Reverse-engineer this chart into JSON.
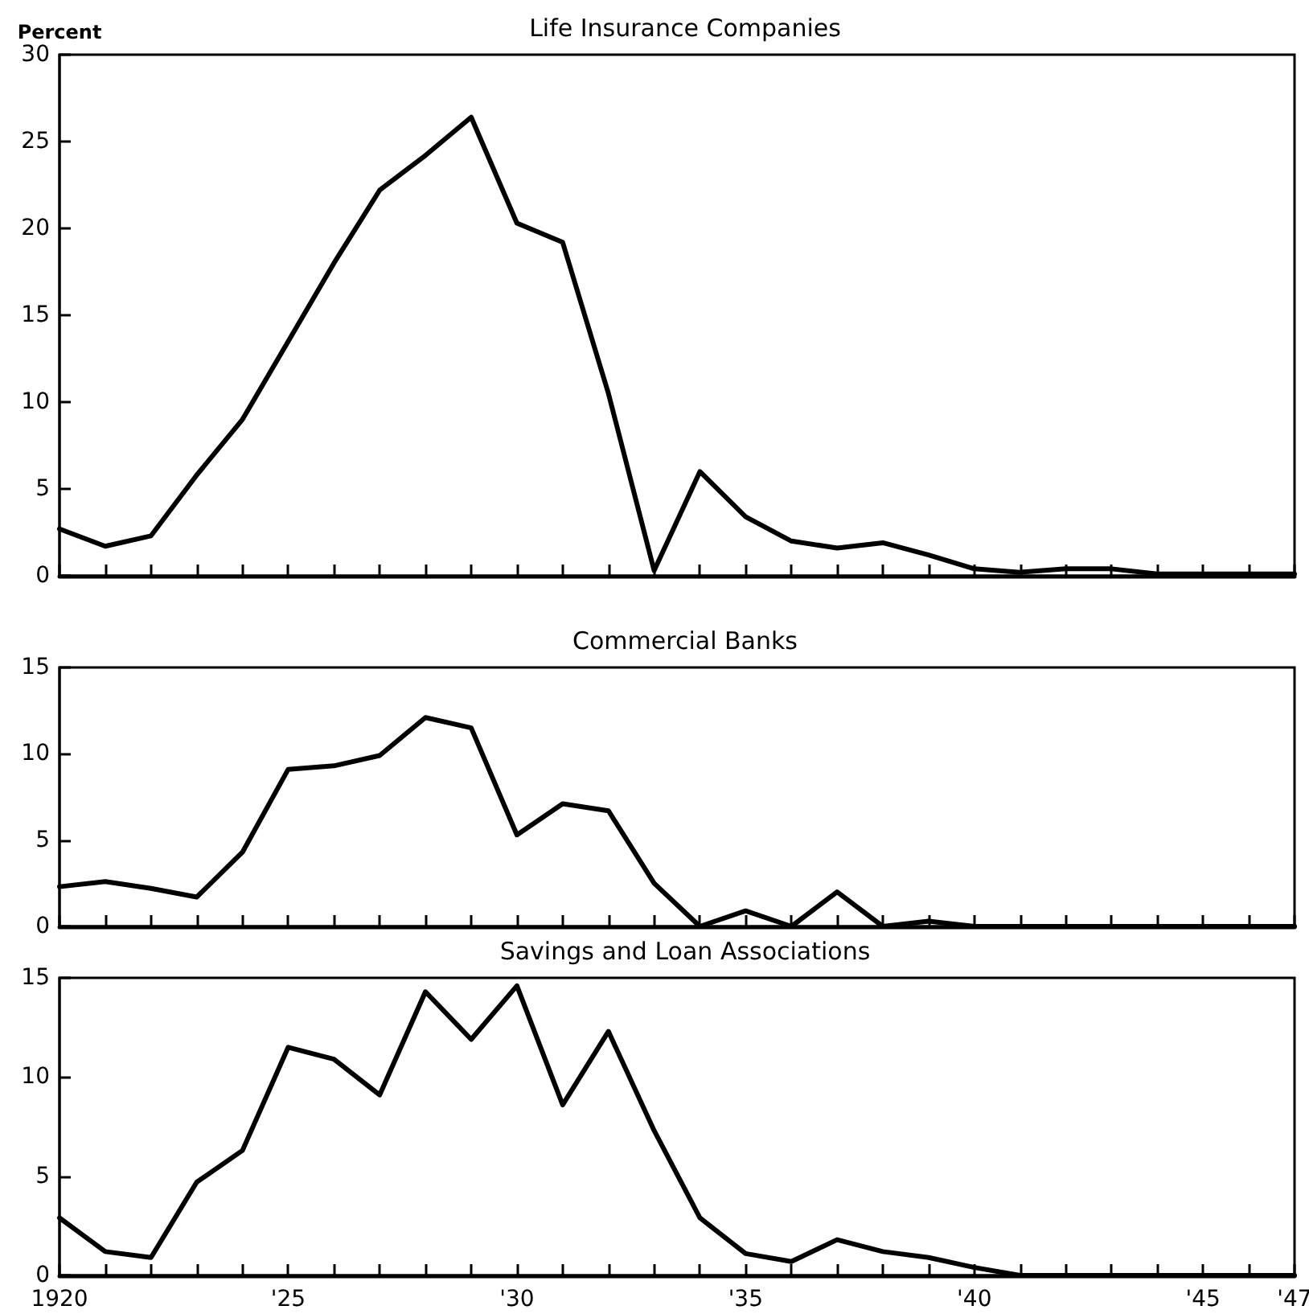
{
  "chart_data": [
    {
      "type": "line",
      "title": "Life Insurance Companies",
      "ylabel": "Percent",
      "tick_labels": "y",
      "x": [
        1920,
        1921,
        1922,
        1923,
        1924,
        1925,
        1926,
        1927,
        1928,
        1929,
        1930,
        1931,
        1932,
        1933,
        1934,
        1935,
        1936,
        1937,
        1938,
        1939,
        1940,
        1941,
        1942,
        1943,
        1944,
        1945,
        1946,
        1947
      ],
      "series": [
        {
          "color": "#000000",
          "values": [
            2.7,
            1.7,
            2.3,
            5.8,
            9.0,
            13.5,
            18.0,
            22.2,
            24.2,
            26.4,
            20.3,
            19.2,
            10.5,
            0.3,
            6.0,
            3.4,
            2.0,
            1.6,
            1.9,
            1.2,
            0.4,
            0.2,
            0.4,
            0.4,
            0.1,
            0.1,
            0.1,
            0.1
          ]
        }
      ],
      "xlim": [
        1920,
        1947
      ],
      "xticks": [
        {
          "value": 1920,
          "label": null
        },
        {
          "value": 1921,
          "label": null
        },
        {
          "value": 1922,
          "label": null
        },
        {
          "value": 1923,
          "label": null
        },
        {
          "value": 1924,
          "label": null
        },
        {
          "value": 1925,
          "label": null
        },
        {
          "value": 1926,
          "label": null
        },
        {
          "value": 1927,
          "label": null
        },
        {
          "value": 1928,
          "label": null
        },
        {
          "value": 1929,
          "label": null
        },
        {
          "value": 1930,
          "label": null
        },
        {
          "value": 1931,
          "label": null
        },
        {
          "value": 1932,
          "label": null
        },
        {
          "value": 1933,
          "label": null
        },
        {
          "value": 1934,
          "label": null
        },
        {
          "value": 1935,
          "label": null
        },
        {
          "value": 1936,
          "label": null
        },
        {
          "value": 1937,
          "label": null
        },
        {
          "value": 1938,
          "label": null
        },
        {
          "value": 1939,
          "label": null
        },
        {
          "value": 1940,
          "label": null
        },
        {
          "value": 1941,
          "label": null
        },
        {
          "value": 1942,
          "label": null
        },
        {
          "value": 1943,
          "label": null
        },
        {
          "value": 1944,
          "label": null
        },
        {
          "value": 1945,
          "label": null
        },
        {
          "value": 1946,
          "label": null
        },
        {
          "value": 1947,
          "label": null
        }
      ],
      "ylim": [
        0,
        30
      ],
      "yticks": [
        0,
        5,
        10,
        15,
        20,
        25,
        30
      ]
    },
    {
      "type": "line",
      "title": "Commercial Banks",
      "tick_labels": "y",
      "x": [
        1920,
        1921,
        1922,
        1923,
        1924,
        1925,
        1926,
        1927,
        1928,
        1929,
        1930,
        1931,
        1932,
        1933,
        1934,
        1935,
        1936,
        1937,
        1938,
        1939,
        1940,
        1941,
        1942,
        1943,
        1944,
        1945,
        1946,
        1947
      ],
      "series": [
        {
          "color": "#000000",
          "values": [
            2.3,
            2.6,
            2.2,
            1.7,
            4.3,
            9.1,
            9.3,
            9.9,
            12.1,
            11.5,
            5.3,
            7.1,
            6.7,
            2.5,
            0,
            0.9,
            0,
            2.0,
            0,
            0.3,
            0,
            0,
            0,
            0,
            0,
            0,
            0,
            0
          ]
        }
      ],
      "xlim": [
        1920,
        1947
      ],
      "xticks": [
        {
          "value": 1920,
          "label": null
        },
        {
          "value": 1921,
          "label": null
        },
        {
          "value": 1922,
          "label": null
        },
        {
          "value": 1923,
          "label": null
        },
        {
          "value": 1924,
          "label": null
        },
        {
          "value": 1925,
          "label": null
        },
        {
          "value": 1926,
          "label": null
        },
        {
          "value": 1927,
          "label": null
        },
        {
          "value": 1928,
          "label": null
        },
        {
          "value": 1929,
          "label": null
        },
        {
          "value": 1930,
          "label": null
        },
        {
          "value": 1931,
          "label": null
        },
        {
          "value": 1932,
          "label": null
        },
        {
          "value": 1933,
          "label": null
        },
        {
          "value": 1934,
          "label": null
        },
        {
          "value": 1935,
          "label": null
        },
        {
          "value": 1936,
          "label": null
        },
        {
          "value": 1937,
          "label": null
        },
        {
          "value": 1938,
          "label": null
        },
        {
          "value": 1939,
          "label": null
        },
        {
          "value": 1940,
          "label": null
        },
        {
          "value": 1941,
          "label": null
        },
        {
          "value": 1942,
          "label": null
        },
        {
          "value": 1943,
          "label": null
        },
        {
          "value": 1944,
          "label": null
        },
        {
          "value": 1945,
          "label": null
        },
        {
          "value": 1946,
          "label": null
        },
        {
          "value": 1947,
          "label": null
        }
      ],
      "ylim": [
        0,
        15
      ],
      "yticks": [
        0,
        5,
        10,
        15
      ]
    },
    {
      "type": "line",
      "title": "Savings and Loan Associations",
      "x": [
        1920,
        1921,
        1922,
        1923,
        1924,
        1925,
        1926,
        1927,
        1928,
        1929,
        1930,
        1931,
        1932,
        1933,
        1934,
        1935,
        1936,
        1937,
        1938,
        1939,
        1940,
        1941,
        1942,
        1943,
        1944,
        1945,
        1946,
        1947
      ],
      "series": [
        {
          "color": "#000000",
          "values": [
            2.9,
            1.2,
            0.9,
            4.7,
            6.3,
            11.5,
            10.9,
            9.1,
            14.3,
            11.9,
            14.6,
            8.6,
            12.3,
            7.3,
            2.9,
            1.1,
            0.7,
            1.8,
            1.2,
            0.9,
            0.4,
            0,
            0,
            0,
            0,
            0,
            0,
            0
          ]
        }
      ],
      "xlim": [
        1920,
        1947
      ],
      "xticks": [
        {
          "value": 1920,
          "label": "1920"
        },
        {
          "value": 1921,
          "label": null
        },
        {
          "value": 1922,
          "label": null
        },
        {
          "value": 1923,
          "label": null
        },
        {
          "value": 1924,
          "label": null
        },
        {
          "value": 1925,
          "label": "'25"
        },
        {
          "value": 1926,
          "label": null
        },
        {
          "value": 1927,
          "label": null
        },
        {
          "value": 1928,
          "label": null
        },
        {
          "value": 1929,
          "label": null
        },
        {
          "value": 1930,
          "label": "'30"
        },
        {
          "value": 1931,
          "label": null
        },
        {
          "value": 1932,
          "label": null
        },
        {
          "value": 1933,
          "label": null
        },
        {
          "value": 1934,
          "label": null
        },
        {
          "value": 1935,
          "label": "'35"
        },
        {
          "value": 1936,
          "label": null
        },
        {
          "value": 1937,
          "label": null
        },
        {
          "value": 1938,
          "label": null
        },
        {
          "value": 1939,
          "label": null
        },
        {
          "value": 1940,
          "label": "'40"
        },
        {
          "value": 1941,
          "label": null
        },
        {
          "value": 1942,
          "label": null
        },
        {
          "value": 1943,
          "label": null
        },
        {
          "value": 1944,
          "label": null
        },
        {
          "value": 1945,
          "label": "'45"
        },
        {
          "value": 1946,
          "label": null
        },
        {
          "value": 1947,
          "label": "'47"
        }
      ],
      "ylim": [
        0,
        15
      ],
      "yticks": [
        0,
        5,
        10,
        15
      ]
    }
  ]
}
